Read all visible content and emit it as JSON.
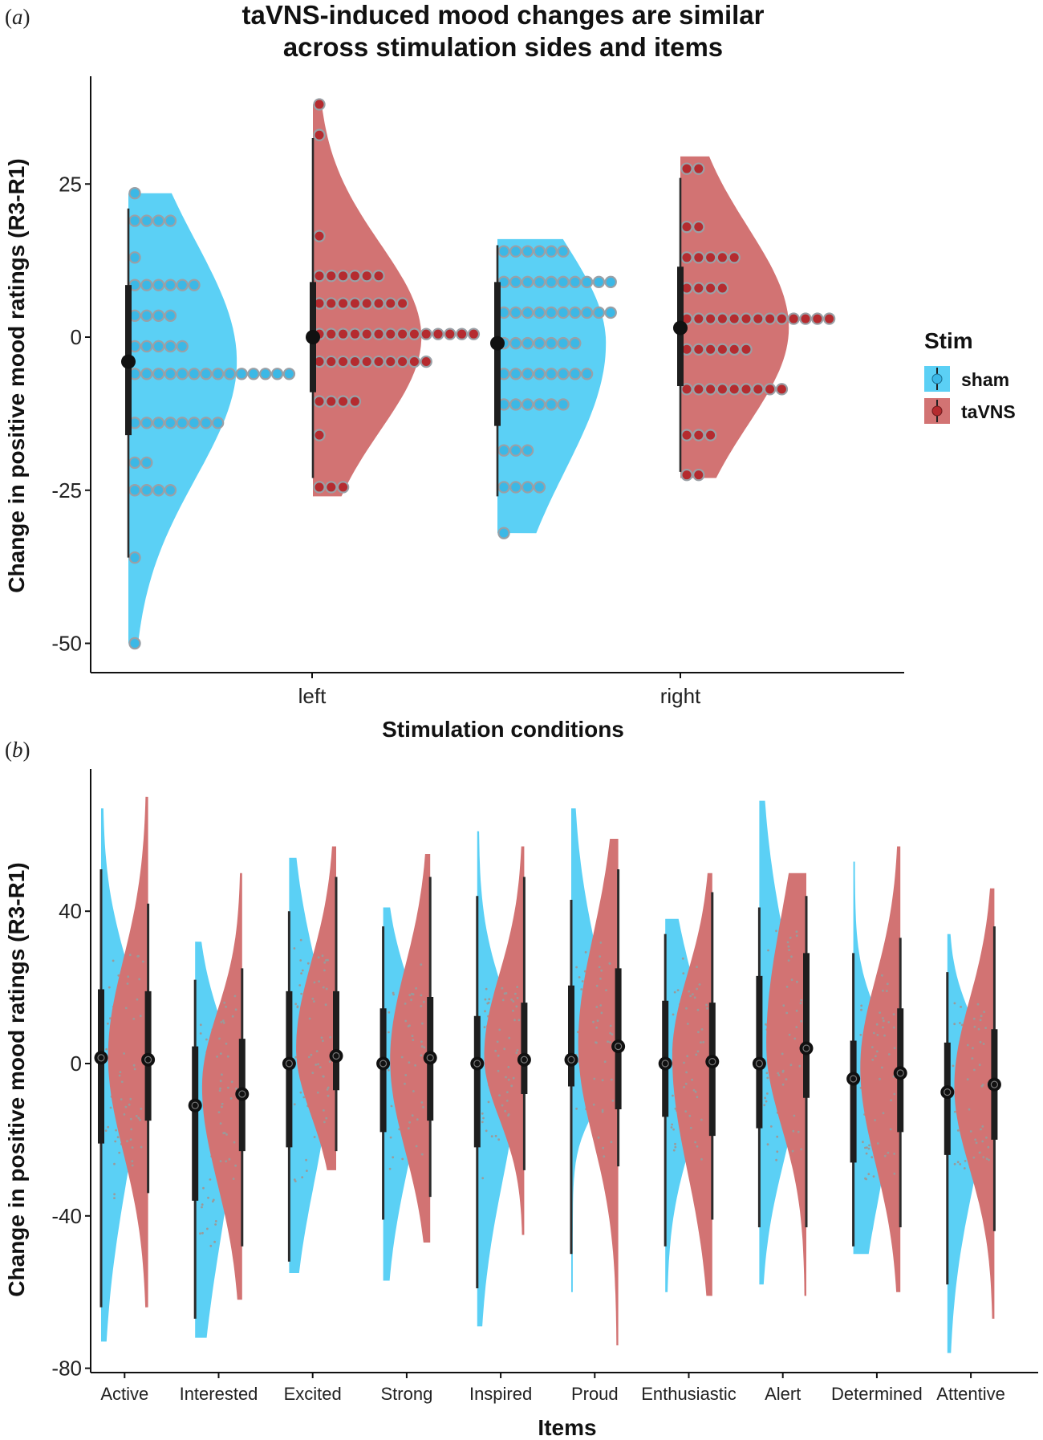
{
  "figure": {
    "panel_a_label": "a",
    "panel_b_label": "b"
  },
  "legend": {
    "title": "Stim",
    "items": [
      {
        "label": "sham",
        "color": "#5bd0f5",
        "dot": "#3bb8e6"
      },
      {
        "label": "taVNS",
        "color": "#d27373",
        "dot": "#b52b2f"
      }
    ]
  },
  "chart_data": [
    {
      "type": "violin",
      "title": "taVNS-induced mood changes are similar across stimulation sides and items",
      "title_lines": [
        "taVNS-induced mood changes are similar",
        "across stimulation sides and items"
      ],
      "xlabel": "Stimulation conditions",
      "ylabel": "Change in positive mood ratings (R3-R1)",
      "categories": [
        "left",
        "right"
      ],
      "ylim": [
        -54,
        42
      ],
      "yticks": [
        -50,
        -25,
        0,
        25
      ],
      "grid": false,
      "legend_position": "right",
      "groups": [
        {
          "category": "left",
          "stim": "sham",
          "median": -4,
          "q1": -16,
          "q3": 8.5,
          "whisker_low": -36,
          "whisker_high": 21,
          "min": -50,
          "max": 23.5,
          "dots": [
            [
              23.5,
              1
            ],
            [
              19,
              4
            ],
            [
              13,
              1
            ],
            [
              8.5,
              6
            ],
            [
              3.5,
              4
            ],
            [
              -1.5,
              5
            ],
            [
              -6,
              14
            ],
            [
              -14,
              8
            ],
            [
              -20.5,
              2
            ],
            [
              -25,
              4
            ],
            [
              -36,
              1
            ],
            [
              -50,
              1
            ]
          ]
        },
        {
          "category": "left",
          "stim": "taVNS",
          "median": 0,
          "q1": -9,
          "q3": 9,
          "whisker_low": -23,
          "whisker_high": 32.5,
          "min": -26,
          "max": 38,
          "dots": [
            [
              38,
              1
            ],
            [
              33,
              1
            ],
            [
              16.5,
              1
            ],
            [
              10,
              6
            ],
            [
              5.5,
              8
            ],
            [
              0.5,
              14
            ],
            [
              -4,
              10
            ],
            [
              -10.5,
              4
            ],
            [
              -16,
              1
            ],
            [
              -24.5,
              3
            ]
          ]
        },
        {
          "category": "right",
          "stim": "sham",
          "median": -1,
          "q1": -14.5,
          "q3": 9,
          "whisker_low": -26,
          "whisker_high": 15,
          "min": -32,
          "max": 16,
          "dots": [
            [
              14,
              6
            ],
            [
              9,
              10
            ],
            [
              4,
              10
            ],
            [
              -1,
              7
            ],
            [
              -6,
              8
            ],
            [
              -11,
              6
            ],
            [
              -18.5,
              3
            ],
            [
              -24.5,
              4
            ],
            [
              -32,
              1
            ]
          ]
        },
        {
          "category": "right",
          "stim": "taVNS",
          "median": 1.5,
          "q1": -8,
          "q3": 11.5,
          "whisker_low": -22,
          "whisker_high": 26,
          "min": -23,
          "max": 29.5,
          "dots": [
            [
              27.5,
              2
            ],
            [
              18,
              2
            ],
            [
              13,
              5
            ],
            [
              8,
              4
            ],
            [
              3,
              13
            ],
            [
              -2,
              6
            ],
            [
              -8.5,
              9
            ],
            [
              -16,
              3
            ],
            [
              -22.5,
              2
            ]
          ]
        }
      ]
    },
    {
      "type": "violin",
      "xlabel": "Items",
      "ylabel": "Change in positive mood ratings (R3-R1)",
      "categories": [
        "Active",
        "Interested",
        "Excited",
        "Strong",
        "Inspired",
        "Proud",
        "Enthusiastic",
        "Alert",
        "Determined",
        "Attentive"
      ],
      "ylim": [
        -84,
        72
      ],
      "yticks": [
        -80,
        -40,
        0,
        40
      ],
      "grid": false,
      "groups": [
        {
          "category": "Active",
          "stim": "sham",
          "median": 1.5,
          "q1": -21,
          "q3": 19.5,
          "whisker_low": -64,
          "whisker_high": 51,
          "min": -73,
          "max": 67,
          "peak": 5
        },
        {
          "category": "Active",
          "stim": "taVNS",
          "median": 1,
          "q1": -15,
          "q3": 19,
          "whisker_low": -34,
          "whisker_high": 42,
          "min": -64,
          "max": 70,
          "peak": 2
        },
        {
          "category": "Interested",
          "stim": "sham",
          "median": -11,
          "q1": -36,
          "q3": 4.5,
          "whisker_low": -67,
          "whisker_high": 22,
          "min": -72,
          "max": 32,
          "peak": -8
        },
        {
          "category": "Interested",
          "stim": "taVNS",
          "median": -8,
          "q1": -23,
          "q3": 6.5,
          "whisker_low": -48,
          "whisker_high": 25,
          "min": -62,
          "max": 50,
          "peak": -6
        },
        {
          "category": "Excited",
          "stim": "sham",
          "median": 0,
          "q1": -22,
          "q3": 19,
          "whisker_low": -52,
          "whisker_high": 40,
          "min": -55,
          "max": 54,
          "peak": 0
        },
        {
          "category": "Excited",
          "stim": "taVNS",
          "median": 2,
          "q1": -7,
          "q3": 19,
          "whisker_low": -23,
          "whisker_high": 49,
          "min": -28,
          "max": 57,
          "peak": 4
        },
        {
          "category": "Strong",
          "stim": "sham",
          "median": 0,
          "q1": -18,
          "q3": 14.5,
          "whisker_low": -41,
          "whisker_high": 36,
          "min": -57,
          "max": 41,
          "peak": 2
        },
        {
          "category": "Strong",
          "stim": "taVNS",
          "median": 1.5,
          "q1": -15,
          "q3": 17.5,
          "whisker_low": -35,
          "whisker_high": 49,
          "min": -47,
          "max": 55,
          "peak": 1
        },
        {
          "category": "Inspired",
          "stim": "sham",
          "median": 0,
          "q1": -22,
          "q3": 12.5,
          "whisker_low": -59,
          "whisker_high": 44,
          "min": -69,
          "max": 61,
          "peak": 0
        },
        {
          "category": "Inspired",
          "stim": "taVNS",
          "median": 1,
          "q1": -8,
          "q3": 16,
          "whisker_low": -28,
          "whisker_high": 49,
          "min": -45,
          "max": 57,
          "peak": 2
        },
        {
          "category": "Proud",
          "stim": "sham",
          "median": 1,
          "q1": -6,
          "q3": 20.5,
          "whisker_low": -50,
          "whisker_high": 43,
          "min": -60,
          "max": 67,
          "peak": 0
        },
        {
          "category": "Proud",
          "stim": "taVNS",
          "median": 4.5,
          "q1": -12,
          "q3": 25,
          "whisker_low": -27,
          "whisker_high": 51,
          "min": -74,
          "max": 59,
          "peak": 5
        },
        {
          "category": "Enthusiastic",
          "stim": "sham",
          "median": 0,
          "q1": -14,
          "q3": 16.5,
          "whisker_low": -48,
          "whisker_high": 34,
          "min": -60,
          "max": 38,
          "peak": 0
        },
        {
          "category": "Enthusiastic",
          "stim": "taVNS",
          "median": 0.5,
          "q1": -19,
          "q3": 16,
          "whisker_low": -41,
          "whisker_high": 45,
          "min": -61,
          "max": 50,
          "peak": 2
        },
        {
          "category": "Alert",
          "stim": "sham",
          "median": 0,
          "q1": -17,
          "q3": 23,
          "whisker_low": -43,
          "whisker_high": 41,
          "min": -58,
          "max": 69,
          "peak": 0
        },
        {
          "category": "Alert",
          "stim": "taVNS",
          "median": 4,
          "q1": -9,
          "q3": 29,
          "whisker_low": -43,
          "whisker_high": 44,
          "min": -61,
          "max": 50,
          "peak": 5
        },
        {
          "category": "Determined",
          "stim": "sham",
          "median": -4,
          "q1": -26,
          "q3": 6,
          "whisker_low": -48,
          "whisker_high": 29,
          "min": -50,
          "max": 53,
          "peak": -3
        },
        {
          "category": "Determined",
          "stim": "taVNS",
          "median": -2.5,
          "q1": -18,
          "q3": 14.5,
          "whisker_low": -43,
          "whisker_high": 33,
          "min": -60,
          "max": 57,
          "peak": -1
        },
        {
          "category": "Attentive",
          "stim": "sham",
          "median": -7.5,
          "q1": -24,
          "q3": 5.5,
          "whisker_low": -58,
          "whisker_high": 24,
          "min": -76,
          "max": 34,
          "peak": -3
        },
        {
          "category": "Attentive",
          "stim": "taVNS",
          "median": -5.5,
          "q1": -20,
          "q3": 9,
          "whisker_low": -44,
          "whisker_high": 36,
          "min": -67,
          "max": 46,
          "peak": -6
        }
      ]
    }
  ]
}
